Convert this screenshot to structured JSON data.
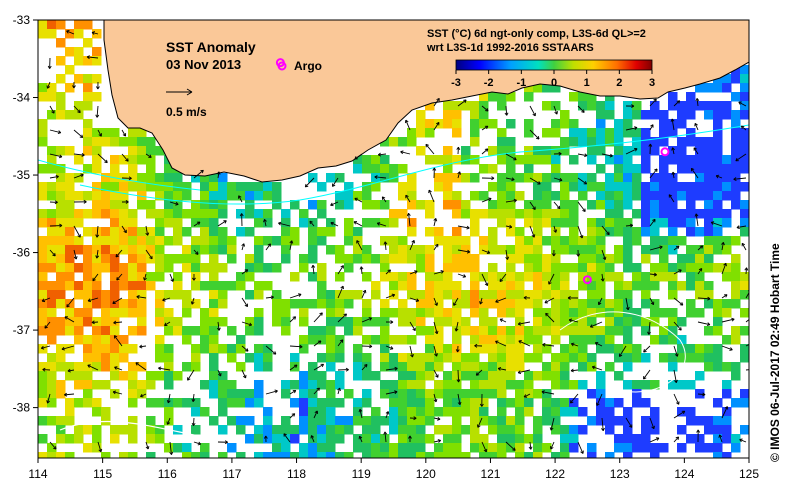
{
  "map": {
    "title": "SST Anomaly",
    "date": "03 Nov 2013",
    "argo_label": "Argo",
    "vector_scale_label": "0.5 m/s",
    "product_line1": "SST (°C) 6d ngt-only comp, L3S-6d QL>=2",
    "product_line2": "wrt L3S-1d 1992-2016 SSTAARS",
    "credit": "© IMOS 06-Jul-2017 02:49 Hobart Time",
    "lon_ticks": [
      "114",
      "115",
      "116",
      "117",
      "118",
      "119",
      "120",
      "121",
      "122",
      "123",
      "124",
      "125"
    ],
    "lat_ticks": [
      "-33",
      "-34",
      "-35",
      "-36",
      "-37",
      "-38"
    ],
    "colorbar_ticks": [
      "-3",
      "-2",
      "-1",
      "0",
      "1",
      "2",
      "3"
    ],
    "colorbar_range": [
      -3,
      3
    ],
    "colors": {
      "land": "#fac898",
      "argo": "#ff00ff",
      "current_line": "#00ffff"
    },
    "argo_floats": [
      {
        "lon": 117.75,
        "lat": -33.55
      },
      {
        "lon": 123.7,
        "lat": -34.7
      },
      {
        "lon": 122.5,
        "lat": -36.35
      }
    ]
  }
}
